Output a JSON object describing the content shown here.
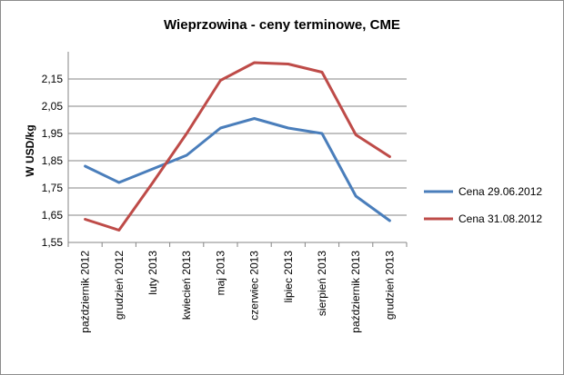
{
  "chart_data": {
    "type": "line",
    "title": "Wieprzowina - ceny terminowe, CME",
    "ylabel": "W USD/kg",
    "xlabel": "",
    "ylim": [
      1.55,
      2.25
    ],
    "yticks": [
      "1,55",
      "1,65",
      "1,75",
      "1,85",
      "1,95",
      "2,05",
      "2,15"
    ],
    "ytick_values": [
      1.55,
      1.65,
      1.75,
      1.85,
      1.95,
      2.05,
      2.15
    ],
    "categories": [
      "październik 2012",
      "grudzień 2012",
      "luty 2013",
      "kwiecień 2013",
      "maj 2013",
      "czerwiec 2013",
      "lipiec 2013",
      "sierpień 2013",
      "październik 2013",
      "grudzień 2013"
    ],
    "grid": true,
    "legend_position": "right",
    "series": [
      {
        "name": "Cena 29.06.2012",
        "color": "#4A7EBB",
        "values": [
          1.83,
          1.77,
          1.82,
          1.87,
          1.97,
          2.005,
          1.97,
          1.95,
          1.72,
          1.63
        ]
      },
      {
        "name": "Cena 31.08.2012",
        "color": "#BE4B48",
        "values": [
          1.635,
          1.595,
          1.77,
          1.95,
          2.145,
          2.21,
          2.205,
          2.175,
          1.945,
          1.865
        ]
      }
    ]
  }
}
